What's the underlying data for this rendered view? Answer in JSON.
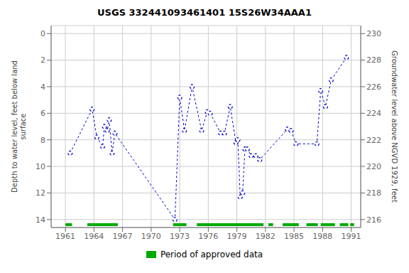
{
  "chart_data": {
    "type": "line",
    "title": "USGS 332441093461401 15S26W34AAA1",
    "ylabel": "Depth to water level, feet below land\nsurface",
    "y2label": "Groundwater level above NGVD 1929, feet",
    "x": [
      1961.5,
      1963.8,
      1964.3,
      1964.9,
      1965.1,
      1965.4,
      1965.6,
      1965.9,
      1966.2,
      1972.5,
      1973.0,
      1973.5,
      1974.3,
      1975.3,
      1975.9,
      1976.2,
      1977.3,
      1977.7,
      1978.3,
      1978.9,
      1979.1,
      1979.35,
      1979.6,
      1979.85,
      1980.1,
      1980.5,
      1981.0,
      1981.4,
      1984.3,
      1984.7,
      1985.2,
      1987.4,
      1987.8,
      1988.3,
      1988.9,
      1990.5
    ],
    "values": [
      9.0,
      5.7,
      7.8,
      8.5,
      7.0,
      7.3,
      6.5,
      9.0,
      7.5,
      14.0,
      4.8,
      7.3,
      4.0,
      7.3,
      5.9,
      6.0,
      7.5,
      7.5,
      5.5,
      8.2,
      8.0,
      12.3,
      12.0,
      8.7,
      8.7,
      9.2,
      9.2,
      9.5,
      7.2,
      7.3,
      8.3,
      8.3,
      4.3,
      5.5,
      3.5,
      1.8
    ],
    "color": "#0000cc",
    "marker": "o",
    "line_style": "dashed",
    "xlim": [
      1959.5,
      1992
    ],
    "xticks": [
      1961,
      1964,
      1967,
      1970,
      1973,
      1976,
      1979,
      1982,
      1985,
      1988,
      1991
    ],
    "ylim": [
      14.6,
      -0.6
    ],
    "yticks": [
      0,
      2,
      4,
      6,
      8,
      10,
      12,
      14
    ],
    "y2lim": [
      215.4,
      230.6
    ],
    "y2ticks": [
      230,
      228,
      226,
      224,
      222,
      220,
      218,
      216
    ],
    "grid": true,
    "legend": "bottom",
    "approved_periods": {
      "name": "Period of approved data",
      "color": "#00aa00",
      "segments": [
        [
          1961.0,
          1961.7
        ],
        [
          1963.3,
          1966.5
        ],
        [
          1972.3,
          1973.7
        ],
        [
          1974.8,
          1981.8
        ],
        [
          1982.3,
          1982.8
        ],
        [
          1983.8,
          1985.5
        ],
        [
          1986.3,
          1987.5
        ],
        [
          1987.8,
          1989.3
        ],
        [
          1989.8,
          1990.7
        ],
        [
          1990.9,
          1991.3
        ]
      ]
    }
  }
}
